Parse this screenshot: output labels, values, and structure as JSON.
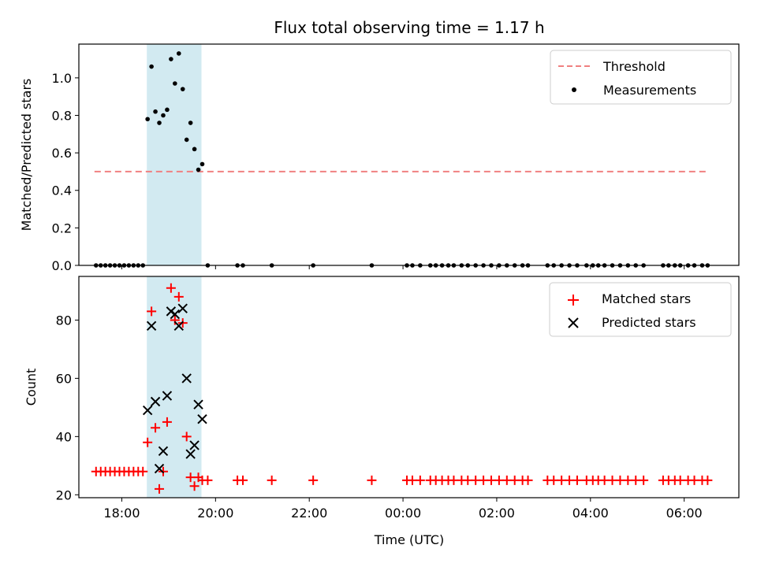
{
  "chart_data": [
    {
      "type": "scatter",
      "title": "Flux total observing time = 1.17 h",
      "xlabel": "",
      "ylabel": "Matched/Predicted stars",
      "xlim": [
        "17:05",
        "07:10"
      ],
      "ylim": [
        0,
        1.18
      ],
      "yticks": [
        0.0,
        0.2,
        0.4,
        0.6,
        0.8,
        1.0
      ],
      "ytick_labels": [
        "0.0",
        "0.2",
        "0.4",
        "0.6",
        "0.8",
        "1.0"
      ],
      "xticks": [
        "18:00",
        "20:00",
        "22:00",
        "00:00",
        "02:00",
        "04:00",
        "06:00"
      ],
      "shaded_region": {
        "x_start": "18:32",
        "x_end": "19:42",
        "color": "#add8e6"
      },
      "legend_position": "top-right",
      "legend": [
        "Threshold",
        "Measurements"
      ],
      "threshold": {
        "name": "Threshold",
        "y": 0.5,
        "x_start": "17:25",
        "x_end": "06:30",
        "color": "#f08080",
        "style": "dashed"
      },
      "series": [
        {
          "name": "Measurements",
          "color": "#000000",
          "points": [
            [
              "17:27",
              0
            ],
            [
              "17:33",
              0
            ],
            [
              "17:39",
              0
            ],
            [
              "17:45",
              0
            ],
            [
              "17:51",
              0
            ],
            [
              "17:57",
              0
            ],
            [
              "18:03",
              0
            ],
            [
              "18:09",
              0
            ],
            [
              "18:15",
              0
            ],
            [
              "18:21",
              0
            ],
            [
              "18:27",
              0
            ],
            [
              "18:33",
              0.78
            ],
            [
              "18:38",
              1.06
            ],
            [
              "18:43",
              0.82
            ],
            [
              "18:48",
              0.76
            ],
            [
              "18:53",
              0.8
            ],
            [
              "18:58",
              0.83
            ],
            [
              "19:03",
              1.1
            ],
            [
              "19:08",
              0.97
            ],
            [
              "19:13",
              1.13
            ],
            [
              "19:18",
              0.94
            ],
            [
              "19:23",
              0.67
            ],
            [
              "19:28",
              0.76
            ],
            [
              "19:33",
              0.62
            ],
            [
              "19:38",
              0.51
            ],
            [
              "19:43",
              0.54
            ],
            [
              "19:50",
              0
            ],
            [
              "20:28",
              0
            ],
            [
              "20:35",
              0
            ],
            [
              "21:12",
              0
            ],
            [
              "22:05",
              0
            ],
            [
              "23:20",
              0
            ],
            [
              "00:05",
              0
            ],
            [
              "00:12",
              0
            ],
            [
              "00:22",
              0
            ],
            [
              "00:35",
              0
            ],
            [
              "00:42",
              0
            ],
            [
              "00:50",
              0
            ],
            [
              "00:58",
              0
            ],
            [
              "01:05",
              0
            ],
            [
              "01:15",
              0
            ],
            [
              "01:23",
              0
            ],
            [
              "01:33",
              0
            ],
            [
              "01:43",
              0
            ],
            [
              "01:53",
              0
            ],
            [
              "02:03",
              0
            ],
            [
              "02:13",
              0
            ],
            [
              "02:23",
              0
            ],
            [
              "02:33",
              0
            ],
            [
              "02:40",
              0
            ],
            [
              "03:05",
              0
            ],
            [
              "03:13",
              0
            ],
            [
              "03:23",
              0
            ],
            [
              "03:33",
              0
            ],
            [
              "03:43",
              0
            ],
            [
              "03:55",
              0
            ],
            [
              "04:03",
              0
            ],
            [
              "04:10",
              0
            ],
            [
              "04:18",
              0
            ],
            [
              "04:28",
              0
            ],
            [
              "04:38",
              0
            ],
            [
              "04:48",
              0
            ],
            [
              "04:58",
              0
            ],
            [
              "05:08",
              0
            ],
            [
              "05:33",
              0
            ],
            [
              "05:40",
              0
            ],
            [
              "05:48",
              0
            ],
            [
              "05:55",
              0
            ],
            [
              "06:05",
              0
            ],
            [
              "06:13",
              0
            ],
            [
              "06:23",
              0
            ],
            [
              "06:30",
              0
            ]
          ]
        }
      ]
    },
    {
      "type": "scatter",
      "title": "",
      "xlabel": "Time (UTC)",
      "ylabel": "Count",
      "xlim": [
        "17:05",
        "07:10"
      ],
      "ylim": [
        19,
        95
      ],
      "yticks": [
        20,
        40,
        60,
        80
      ],
      "ytick_labels": [
        "20",
        "40",
        "60",
        "80"
      ],
      "xticks": [
        "18:00",
        "20:00",
        "22:00",
        "00:00",
        "02:00",
        "04:00",
        "06:00"
      ],
      "xtick_labels": [
        "18:00",
        "20:00",
        "22:00",
        "00:00",
        "02:00",
        "04:00",
        "06:00"
      ],
      "shaded_region": {
        "x_start": "18:32",
        "x_end": "19:42",
        "color": "#add8e6"
      },
      "legend_position": "top-right",
      "legend": [
        "Matched stars",
        "Predicted stars"
      ],
      "series": [
        {
          "name": "Matched stars",
          "marker": "plus",
          "color": "#ff0000",
          "points": [
            [
              "17:27",
              28
            ],
            [
              "17:33",
              28
            ],
            [
              "17:39",
              28
            ],
            [
              "17:45",
              28
            ],
            [
              "17:51",
              28
            ],
            [
              "17:57",
              28
            ],
            [
              "18:03",
              28
            ],
            [
              "18:09",
              28
            ],
            [
              "18:15",
              28
            ],
            [
              "18:21",
              28
            ],
            [
              "18:27",
              28
            ],
            [
              "18:33",
              38
            ],
            [
              "18:38",
              83
            ],
            [
              "18:43",
              43
            ],
            [
              "18:48",
              22
            ],
            [
              "18:53",
              28
            ],
            [
              "18:58",
              45
            ],
            [
              "19:03",
              91
            ],
            [
              "19:08",
              80
            ],
            [
              "19:13",
              88
            ],
            [
              "19:18",
              79
            ],
            [
              "19:23",
              40
            ],
            [
              "19:28",
              26
            ],
            [
              "19:33",
              23
            ],
            [
              "19:38",
              26
            ],
            [
              "19:43",
              25
            ],
            [
              "19:50",
              25
            ],
            [
              "20:28",
              25
            ],
            [
              "20:35",
              25
            ],
            [
              "21:12",
              25
            ],
            [
              "22:05",
              25
            ],
            [
              "23:20",
              25
            ],
            [
              "00:05",
              25
            ],
            [
              "00:12",
              25
            ],
            [
              "00:22",
              25
            ],
            [
              "00:35",
              25
            ],
            [
              "00:42",
              25
            ],
            [
              "00:50",
              25
            ],
            [
              "00:58",
              25
            ],
            [
              "01:05",
              25
            ],
            [
              "01:15",
              25
            ],
            [
              "01:23",
              25
            ],
            [
              "01:33",
              25
            ],
            [
              "01:43",
              25
            ],
            [
              "01:53",
              25
            ],
            [
              "02:03",
              25
            ],
            [
              "02:13",
              25
            ],
            [
              "02:23",
              25
            ],
            [
              "02:33",
              25
            ],
            [
              "02:40",
              25
            ],
            [
              "03:05",
              25
            ],
            [
              "03:13",
              25
            ],
            [
              "03:23",
              25
            ],
            [
              "03:33",
              25
            ],
            [
              "03:43",
              25
            ],
            [
              "03:55",
              25
            ],
            [
              "04:03",
              25
            ],
            [
              "04:10",
              25
            ],
            [
              "04:18",
              25
            ],
            [
              "04:28",
              25
            ],
            [
              "04:38",
              25
            ],
            [
              "04:48",
              25
            ],
            [
              "04:58",
              25
            ],
            [
              "05:08",
              25
            ],
            [
              "05:33",
              25
            ],
            [
              "05:40",
              25
            ],
            [
              "05:48",
              25
            ],
            [
              "05:55",
              25
            ],
            [
              "06:05",
              25
            ],
            [
              "06:13",
              25
            ],
            [
              "06:23",
              25
            ],
            [
              "06:30",
              25
            ]
          ]
        },
        {
          "name": "Predicted stars",
          "marker": "x",
          "color": "#000000",
          "points": [
            [
              "18:33",
              49
            ],
            [
              "18:38",
              78
            ],
            [
              "18:43",
              52
            ],
            [
              "18:48",
              29
            ],
            [
              "18:53",
              35
            ],
            [
              "18:58",
              54
            ],
            [
              "19:03",
              83
            ],
            [
              "19:08",
              82
            ],
            [
              "19:13",
              78
            ],
            [
              "19:18",
              84
            ],
            [
              "19:23",
              60
            ],
            [
              "19:28",
              34
            ],
            [
              "19:33",
              37
            ],
            [
              "19:38",
              51
            ],
            [
              "19:43",
              46
            ]
          ]
        }
      ]
    }
  ]
}
